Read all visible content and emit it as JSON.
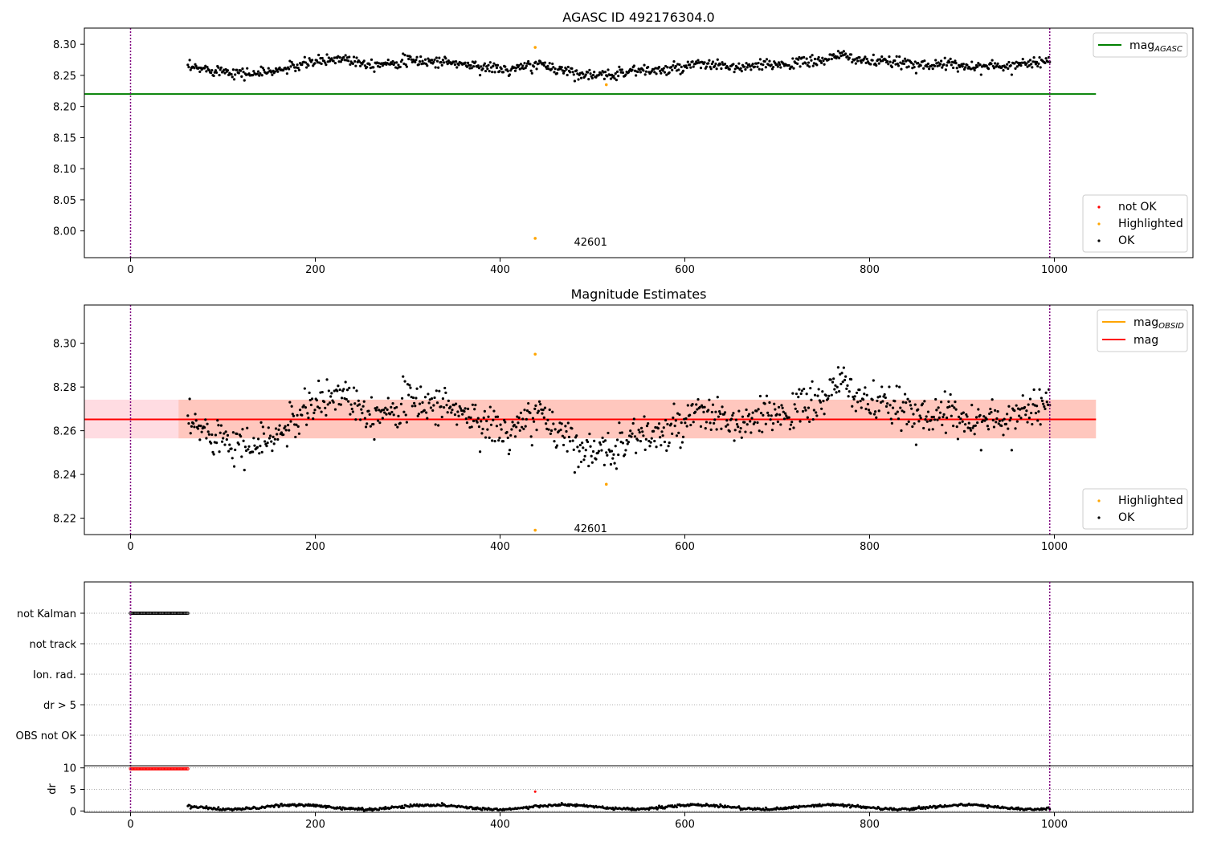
{
  "colors": {
    "ok": "#000000",
    "highlighted": "#ffa500",
    "not_ok": "#ff0000",
    "agasc_line": "#008000",
    "obsid_line": "#ffa500",
    "mag_line": "#ff0000",
    "vline": "#800080",
    "band_outer": "#ffc0cb",
    "band_inner": "#ffa07a"
  },
  "chart_data": [
    {
      "type": "scatter",
      "title": "AGASC ID 492176304.0",
      "xlim": [
        -50,
        1150
      ],
      "ylim": [
        7.957,
        8.326
      ],
      "x_ticks": [
        0,
        200,
        400,
        600,
        800,
        1000
      ],
      "x_tick_labels": [
        "0",
        "200",
        "400",
        "600",
        "800",
        "1000"
      ],
      "y_ticks": [
        8.0,
        8.05,
        8.1,
        8.15,
        8.2,
        8.25,
        8.3
      ],
      "y_tick_labels": [
        "8.00",
        "8.05",
        "8.10",
        "8.15",
        "8.20",
        "8.25",
        "8.30"
      ],
      "vertical_lines": [
        0,
        995
      ],
      "annotation": {
        "text": "42601",
        "x": 480,
        "y": 7.983
      },
      "ok_series": {
        "x_start": 62,
        "x_end": 995,
        "n": 930,
        "base": 8.265,
        "keys": [
          [
            62,
            8.262
          ],
          [
            100,
            8.258
          ],
          [
            130,
            8.252
          ],
          [
            160,
            8.258
          ],
          [
            200,
            8.272
          ],
          [
            230,
            8.278
          ],
          [
            260,
            8.268
          ],
          [
            300,
            8.273
          ],
          [
            340,
            8.272
          ],
          [
            380,
            8.264
          ],
          [
            410,
            8.258
          ],
          [
            440,
            8.268
          ],
          [
            480,
            8.255
          ],
          [
            510,
            8.248
          ],
          [
            540,
            8.258
          ],
          [
            580,
            8.258
          ],
          [
            620,
            8.268
          ],
          [
            660,
            8.262
          ],
          [
            700,
            8.268
          ],
          [
            740,
            8.272
          ],
          [
            770,
            8.282
          ],
          [
            800,
            8.272
          ],
          [
            860,
            8.268
          ],
          [
            900,
            8.266
          ],
          [
            940,
            8.264
          ],
          [
            995,
            8.275
          ]
        ]
      },
      "highlighted_points": [
        [
          438,
          8.295
        ],
        [
          438,
          7.988
        ],
        [
          515,
          8.235
        ]
      ],
      "lines": [
        {
          "label": "mag_AGASC",
          "y": 8.22,
          "x_from": -50,
          "x_to": 1045
        }
      ],
      "legend_lines": [
        {
          "text": "mag",
          "sub": "AGASC",
          "color_key": "agasc_line"
        }
      ],
      "legend_points": [
        {
          "text": "not OK",
          "color_key": "not_ok"
        },
        {
          "text": "Highlighted",
          "color_key": "highlighted"
        },
        {
          "text": "OK",
          "color_key": "ok"
        }
      ]
    },
    {
      "type": "scatter",
      "title": "Magnitude Estimates",
      "xlim": [
        -50,
        1150
      ],
      "ylim": [
        8.2125,
        8.3175
      ],
      "x_ticks": [
        0,
        200,
        400,
        600,
        800,
        1000
      ],
      "x_tick_labels": [
        "0",
        "200",
        "400",
        "600",
        "800",
        "1000"
      ],
      "y_ticks": [
        8.22,
        8.24,
        8.26,
        8.28,
        8.3
      ],
      "y_tick_labels": [
        "8.22",
        "8.24",
        "8.26",
        "8.28",
        "8.30"
      ],
      "vertical_lines": [
        0,
        995
      ],
      "annotation": {
        "text": "42601",
        "x": 480,
        "y": 8.2155
      },
      "band": {
        "y_low": 8.2565,
        "y_high": 8.2742,
        "x_from": -50,
        "x_to": 1045
      },
      "ok_series": {
        "x_start": 62,
        "x_end": 995,
        "n": 930,
        "base": 8.265,
        "keys": [
          [
            62,
            8.262
          ],
          [
            100,
            8.258
          ],
          [
            130,
            8.252
          ],
          [
            160,
            8.258
          ],
          [
            200,
            8.272
          ],
          [
            230,
            8.278
          ],
          [
            260,
            8.268
          ],
          [
            300,
            8.273
          ],
          [
            340,
            8.272
          ],
          [
            380,
            8.264
          ],
          [
            410,
            8.258
          ],
          [
            440,
            8.268
          ],
          [
            480,
            8.255
          ],
          [
            510,
            8.248
          ],
          [
            540,
            8.258
          ],
          [
            580,
            8.258
          ],
          [
            620,
            8.268
          ],
          [
            660,
            8.262
          ],
          [
            700,
            8.268
          ],
          [
            740,
            8.272
          ],
          [
            770,
            8.282
          ],
          [
            800,
            8.272
          ],
          [
            860,
            8.268
          ],
          [
            900,
            8.266
          ],
          [
            940,
            8.264
          ],
          [
            995,
            8.275
          ]
        ]
      },
      "highlighted_points": [
        [
          438,
          8.295
        ],
        [
          515,
          8.2355
        ],
        [
          438,
          8.2145
        ]
      ],
      "lines": [
        {
          "label": "mag_OBSID",
          "y": 8.2652,
          "x_from": -50,
          "x_to": 1045
        },
        {
          "label": "mag",
          "y": 8.2652,
          "x_from": -50,
          "x_to": 1045
        }
      ],
      "legend_lines": [
        {
          "text": "mag",
          "sub": "OBSID",
          "color_key": "obsid_line"
        },
        {
          "text": "mag",
          "sub": "",
          "color_key": "mag_line"
        }
      ],
      "legend_points": [
        {
          "text": "Highlighted",
          "color_key": "highlighted"
        },
        {
          "text": "OK",
          "color_key": "ok"
        }
      ]
    },
    {
      "type": "scatter",
      "title": "",
      "xlim": [
        -50,
        1150
      ],
      "category_labels": [
        "not Kalman",
        "not track",
        "Ion. rad.",
        "dr > 5",
        "OBS not OK"
      ],
      "flags": [
        {
          "label": "not Kalman",
          "x_from": 0,
          "x_to": 62
        }
      ],
      "vertical_lines": [
        0,
        995
      ]
    },
    {
      "type": "scatter",
      "title": "",
      "ylabel": "dr",
      "xlim": [
        -50,
        1150
      ],
      "ylim": [
        -0.3,
        10.5
      ],
      "x_ticks": [
        0,
        200,
        400,
        600,
        800,
        1000
      ],
      "x_tick_labels": [
        "0",
        "200",
        "400",
        "600",
        "800",
        "1000"
      ],
      "y_ticks": [
        0,
        5,
        10
      ],
      "y_tick_labels": [
        "0",
        "5",
        "10"
      ],
      "vertical_lines": [
        0,
        995
      ],
      "red_points": {
        "x_from": 0,
        "x_to": 62,
        "y": 9.8
      },
      "red_single": [
        438,
        4.5
      ],
      "ok_series": {
        "x_start": 62,
        "x_end": 995,
        "n": 930,
        "base": 0.9,
        "amplitude": 0.5
      }
    }
  ]
}
